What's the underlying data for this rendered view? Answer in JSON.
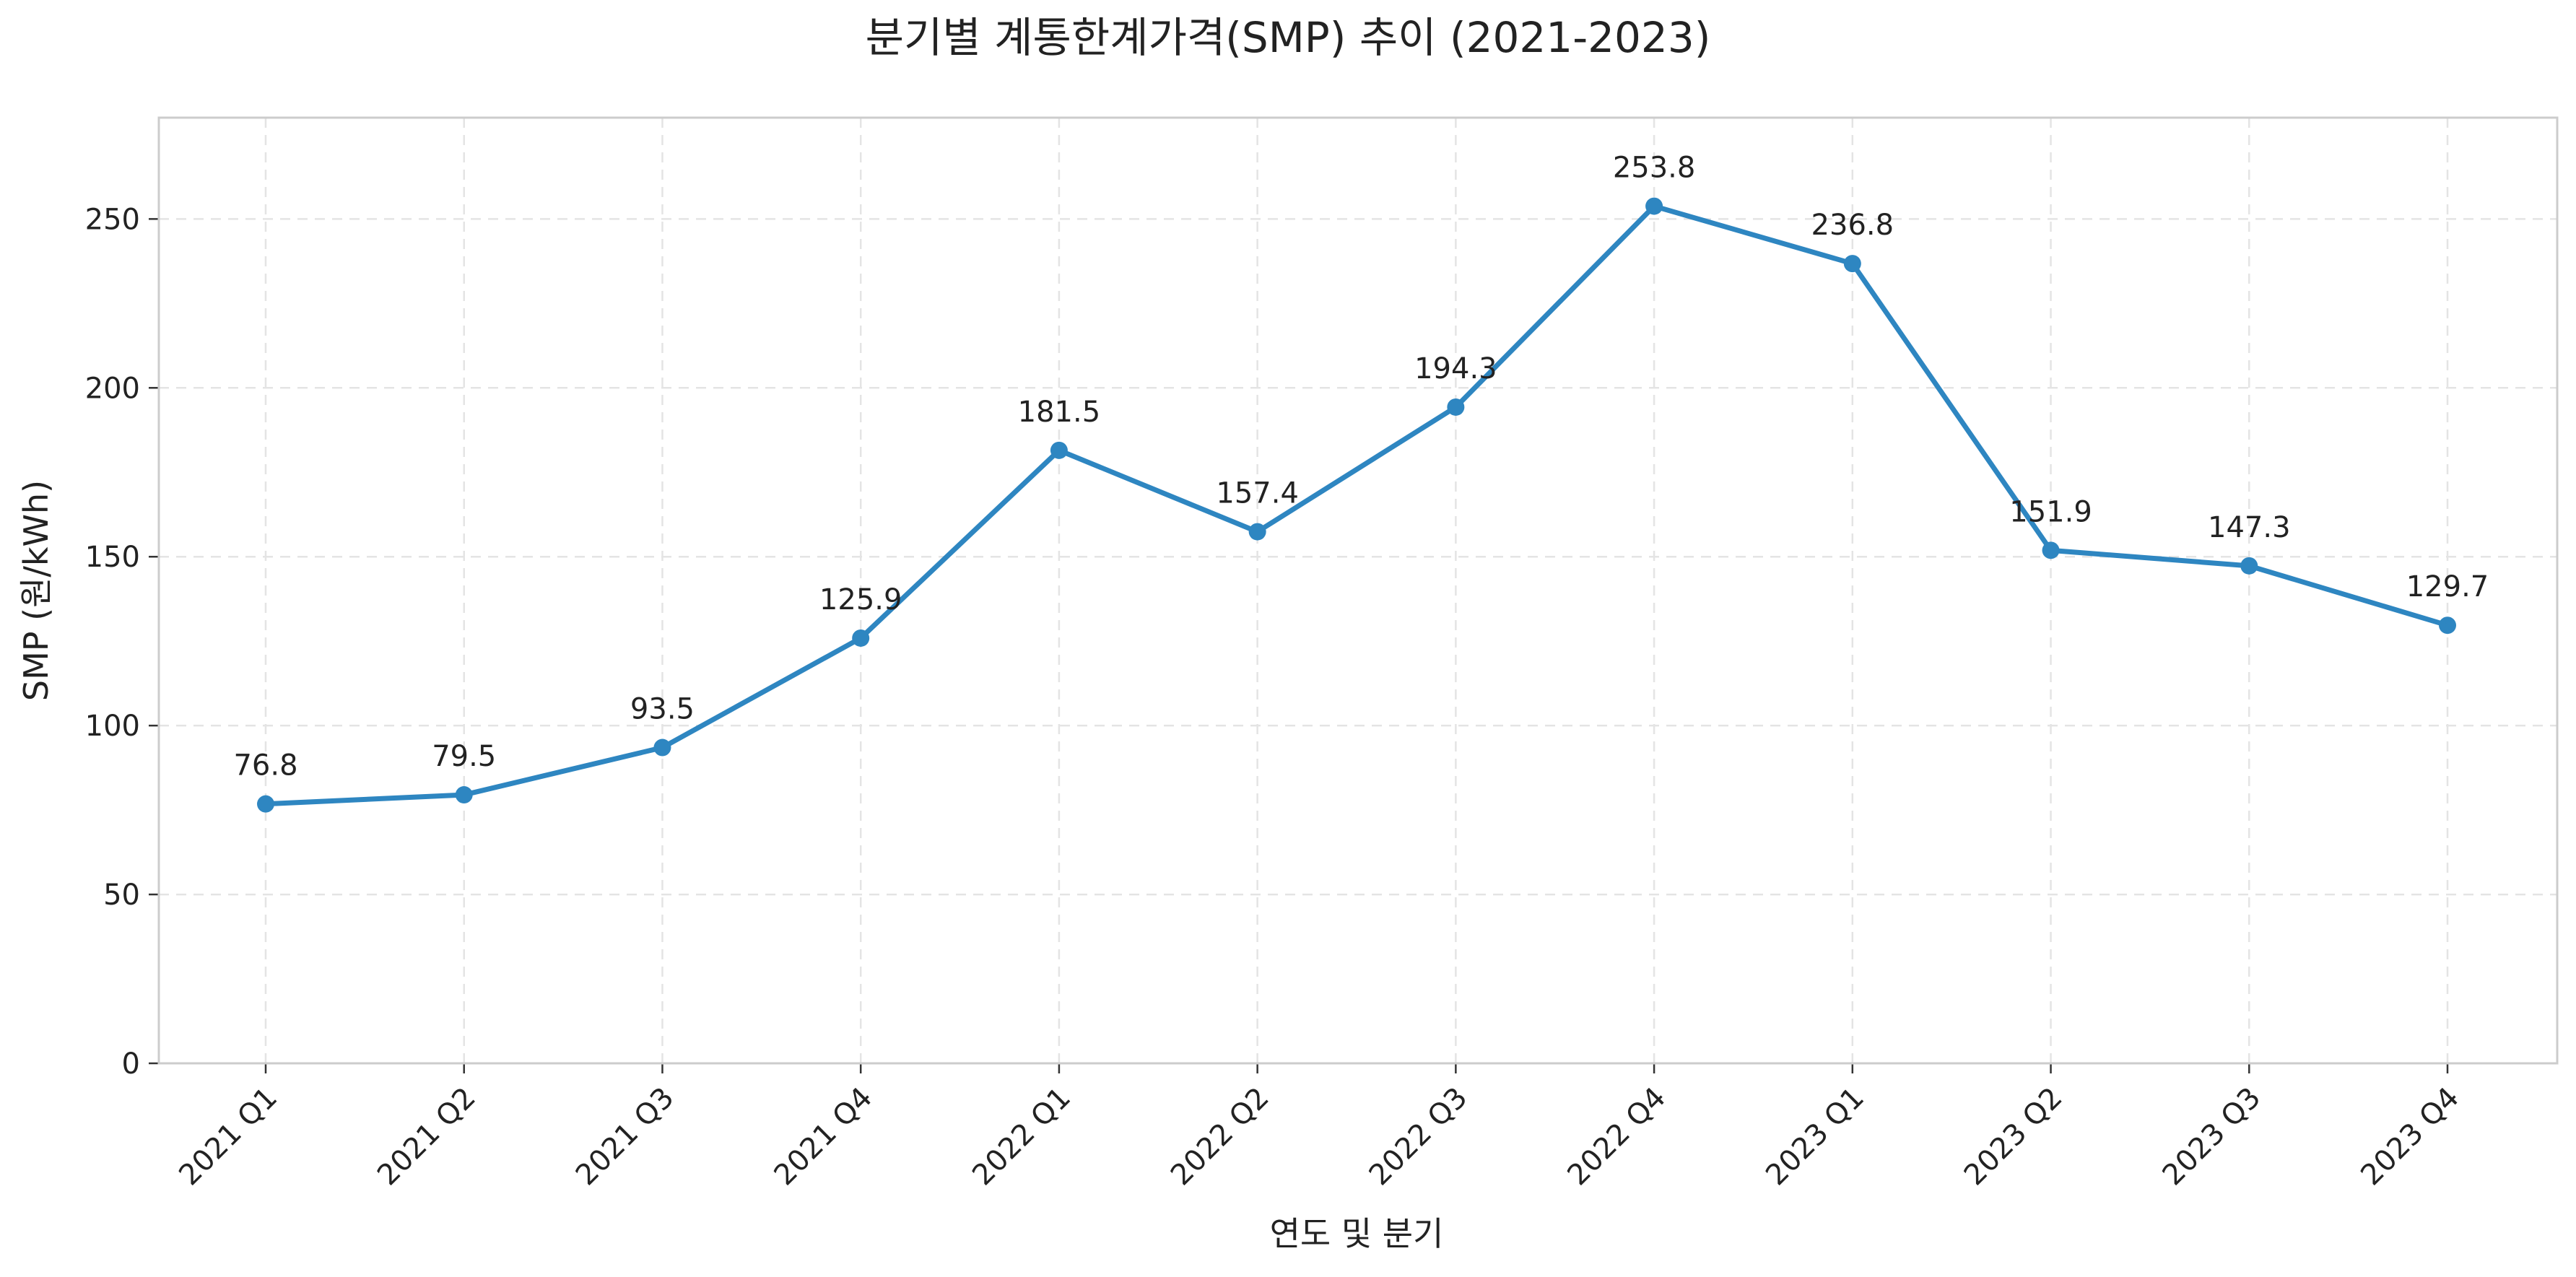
{
  "chart_data": {
    "type": "line",
    "title": "분기별 계통한계가격(SMP) 추이 (2021-2023)",
    "xlabel": "연도 및 분기",
    "ylabel": "SMP (원/kWh)",
    "categories": [
      "2021 Q1",
      "2021 Q2",
      "2021 Q3",
      "2021 Q4",
      "2022 Q1",
      "2022 Q2",
      "2022 Q3",
      "2022 Q4",
      "2023 Q1",
      "2023 Q2",
      "2023 Q3",
      "2023 Q4"
    ],
    "series": [
      {
        "values": [
          76.8,
          79.5,
          93.5,
          125.9,
          181.5,
          157.4,
          194.3,
          253.8,
          236.8,
          151.9,
          147.3,
          129.7
        ],
        "color": "#2e86c1"
      }
    ],
    "data_labels": [
      "76.8",
      "79.5",
      "93.5",
      "125.9",
      "181.5",
      "157.4",
      "194.3",
      "253.8",
      "236.8",
      "151.9",
      "147.3",
      "129.7"
    ],
    "ylim": [
      0,
      280
    ],
    "yticks": [
      0,
      50,
      100,
      150,
      200,
      250
    ],
    "ytick_labels": [
      "0",
      "50",
      "100",
      "150",
      "200",
      "250"
    ],
    "grid": true,
    "markers": true
  }
}
